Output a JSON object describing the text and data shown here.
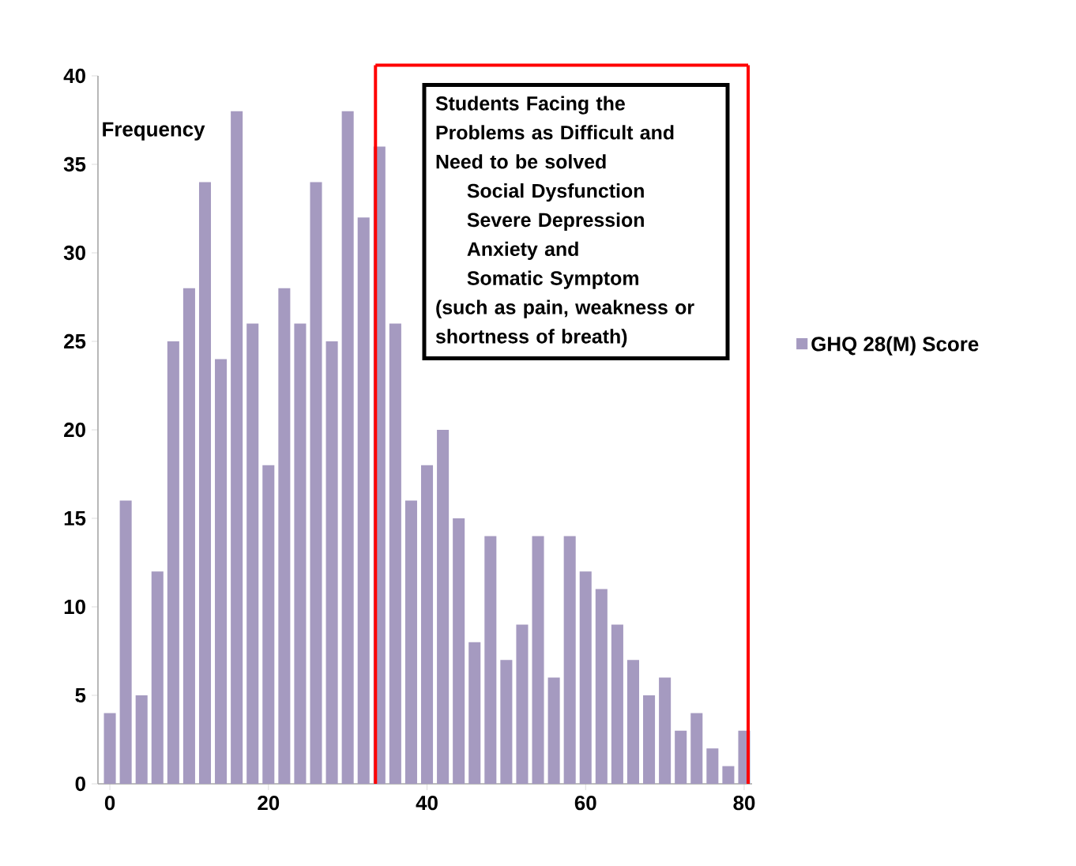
{
  "chart_data": {
    "type": "bar",
    "x": [
      0,
      2,
      4,
      6,
      8,
      10,
      12,
      14,
      16,
      18,
      20,
      22,
      24,
      26,
      28,
      30,
      32,
      34,
      36,
      38,
      40,
      42,
      44,
      46,
      48,
      50,
      52,
      54,
      56,
      58,
      60,
      62,
      64,
      66,
      68,
      70,
      72,
      74,
      76,
      78,
      80
    ],
    "series": [
      {
        "name": "GHQ 28(M) Score",
        "color": "#a59ac0",
        "values": [
          4,
          16,
          5,
          12,
          25,
          28,
          34,
          24,
          38,
          26,
          18,
          28,
          26,
          34,
          25,
          38,
          32,
          36,
          26,
          16,
          18,
          20,
          15,
          8,
          14,
          7,
          9,
          14,
          6,
          14,
          12,
          11,
          9,
          7,
          5,
          6,
          3,
          4,
          2,
          1,
          3
        ]
      }
    ],
    "ylabel": "Frequency",
    "xlim": [
      -1.5,
      81
    ],
    "xticks": [
      0,
      20,
      40,
      60,
      80
    ],
    "ylim": [
      0,
      40
    ],
    "yticks": [
      0,
      5,
      10,
      15,
      20,
      25,
      30,
      35,
      40
    ],
    "grid": false,
    "legend": "right",
    "ref_lines": [
      {
        "axis": "x",
        "value": 33.5,
        "color": "#ff0000"
      },
      {
        "axis": "x",
        "value": 80.5,
        "color": "#ff0000"
      }
    ],
    "annotations": [
      "Students Facing the Problems as Difficult  and Need to be solved",
      "Social Dysfunction",
      "Severe Depression",
      "Anxiety and",
      "Somatic Symptom",
      "(such as   pain, weakness or shortness of breath)"
    ]
  }
}
